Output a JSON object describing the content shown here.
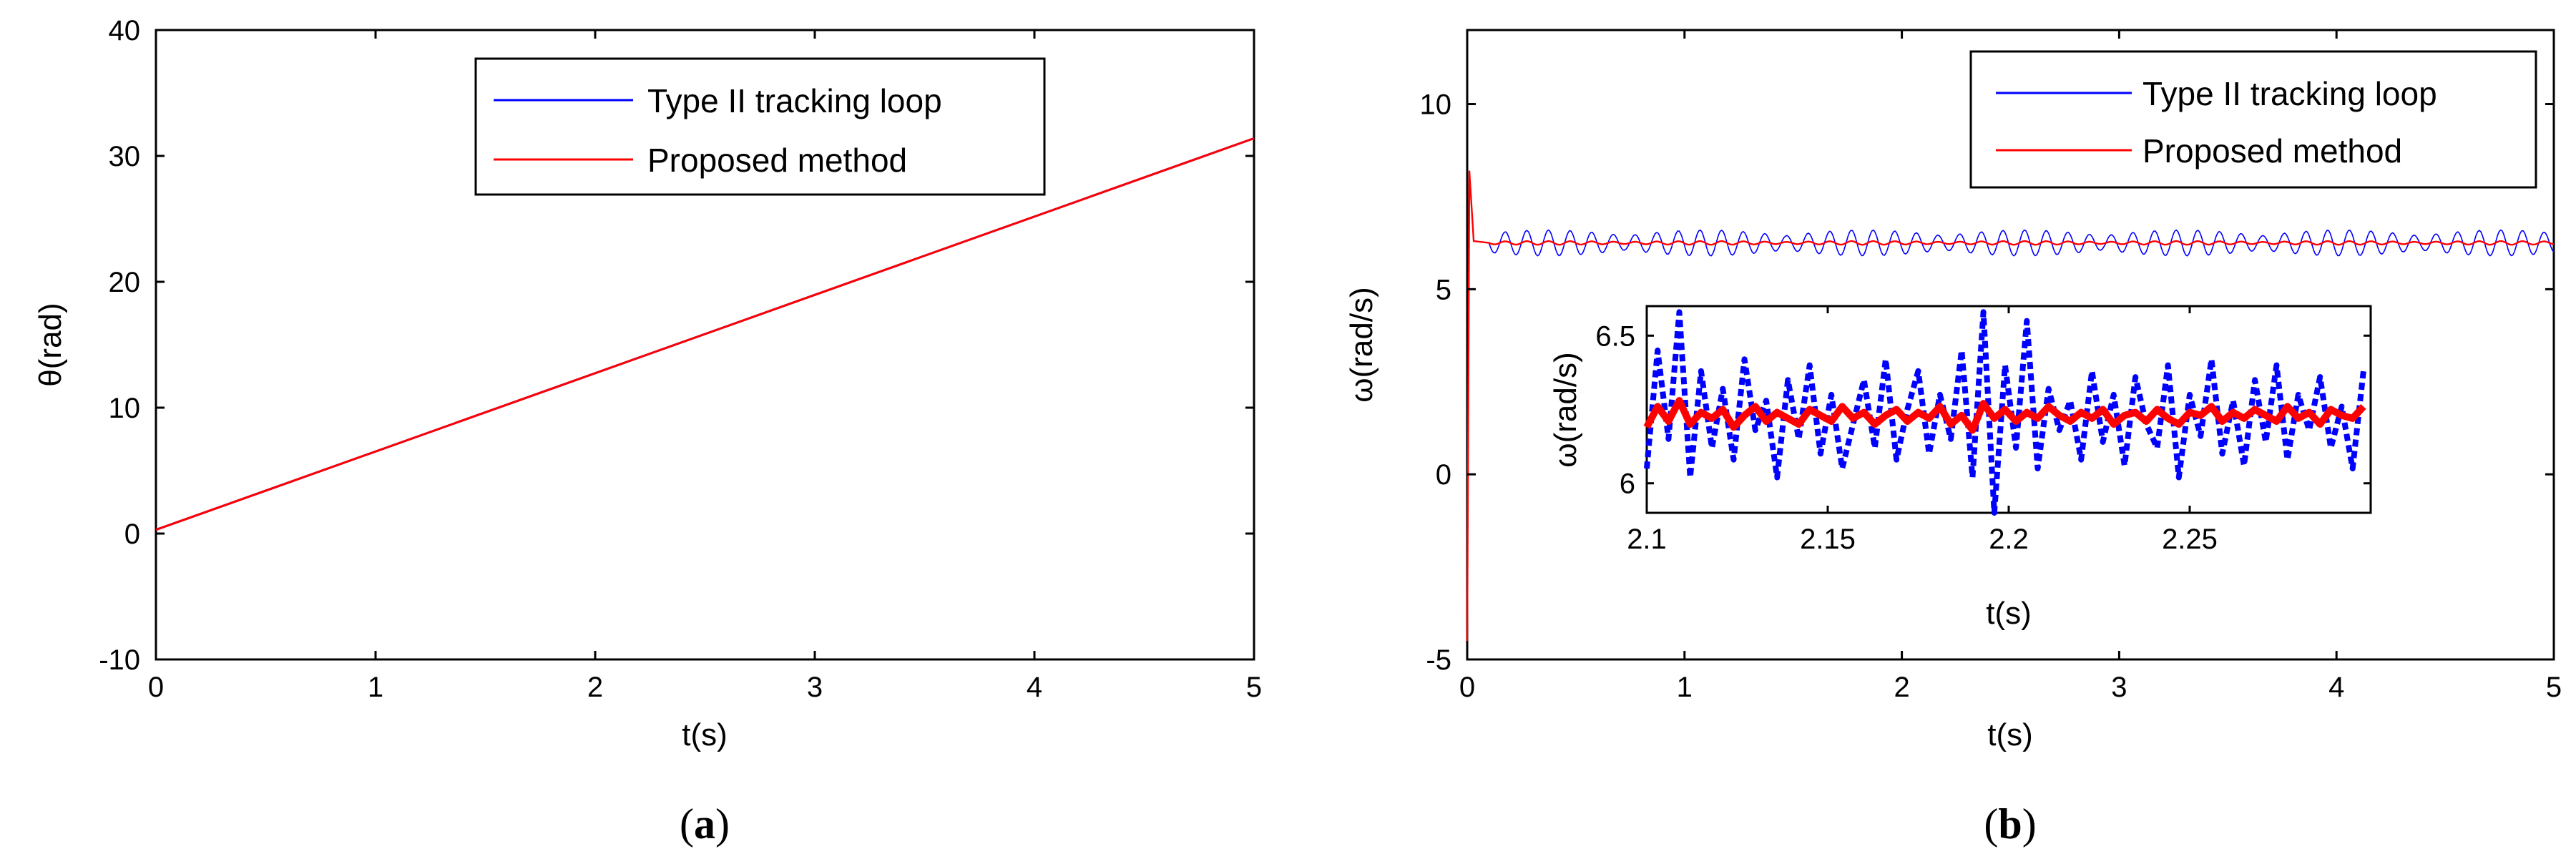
{
  "colors": {
    "type2": "#0000ff",
    "proposed": "#ff0000"
  },
  "chart_data": [
    {
      "id": "a",
      "type": "line",
      "caption": "a",
      "xlabel": "t(s)",
      "ylabel": "θ(rad)",
      "xlim": [
        0,
        5
      ],
      "ylim": [
        -10,
        40
      ],
      "xticks": [
        0,
        1,
        2,
        3,
        4,
        5
      ],
      "yticks": [
        -10,
        0,
        10,
        20,
        30,
        40
      ],
      "legend": "top-right",
      "grid": false,
      "series": [
        {
          "name": "Type II tracking loop",
          "color": "#0000ff",
          "x": [
            0,
            5
          ],
          "y": [
            0.3,
            31.4
          ]
        },
        {
          "name": "Proposed method",
          "color": "#ff0000",
          "x": [
            0,
            5
          ],
          "y": [
            0.3,
            31.4
          ]
        }
      ]
    },
    {
      "id": "b",
      "type": "line",
      "caption": "b",
      "xlabel": "t(s)",
      "ylabel": "ω(rad/s)",
      "xlim": [
        0,
        5
      ],
      "ylim": [
        -5,
        12
      ],
      "xticks": [
        0,
        1,
        2,
        3,
        4,
        5
      ],
      "yticks": [
        -5,
        0,
        5,
        10
      ],
      "legend": "top-right",
      "grid": false,
      "series": [
        {
          "name": "Type II tracking loop",
          "color": "#0000ff",
          "x": [
            0,
            0.01,
            0.03,
            0.1,
            5
          ],
          "y": [
            -4.5,
            8.2,
            6.3,
            6.25,
            6.25
          ],
          "noise_amplitude": 0.35
        },
        {
          "name": "Proposed method",
          "color": "#ff0000",
          "x": [
            0,
            0.01,
            0.03,
            0.1,
            5
          ],
          "y": [
            -4.5,
            8.2,
            6.3,
            6.25,
            6.25
          ],
          "noise_amplitude": 0.05
        }
      ],
      "inset": {
        "xlabel": "t(s)",
        "ylabel": "ω(rad/s)",
        "xlim": [
          2.1,
          2.3
        ],
        "ylim": [
          5.9,
          6.6
        ],
        "xticks": [
          2.1,
          2.15,
          2.2,
          2.25
        ],
        "yticks": [
          6,
          6.5
        ],
        "series": [
          {
            "name": "Type II tracking loop",
            "color": "#0000ff",
            "style": "dotted",
            "x": [
              2.1,
              2.103,
              2.106,
              2.109,
              2.112,
              2.115,
              2.118,
              2.121,
              2.124,
              2.127,
              2.13,
              2.133,
              2.136,
              2.139,
              2.142,
              2.145,
              2.148,
              2.151,
              2.154,
              2.157,
              2.16,
              2.163,
              2.166,
              2.169,
              2.172,
              2.175,
              2.178,
              2.181,
              2.184,
              2.187,
              2.19,
              2.193,
              2.196,
              2.199,
              2.202,
              2.205,
              2.208,
              2.211,
              2.214,
              2.217,
              2.22,
              2.223,
              2.226,
              2.229,
              2.232,
              2.235,
              2.238,
              2.241,
              2.244,
              2.247,
              2.25,
              2.253,
              2.256,
              2.259,
              2.262,
              2.265,
              2.268,
              2.271,
              2.274,
              2.277,
              2.28,
              2.283,
              2.286,
              2.289,
              2.292,
              2.295,
              2.298
            ],
            "y": [
              6.05,
              6.45,
              6.15,
              6.58,
              6.02,
              6.38,
              6.12,
              6.32,
              6.08,
              6.42,
              6.18,
              6.28,
              6.02,
              6.35,
              6.15,
              6.4,
              6.1,
              6.3,
              6.05,
              6.2,
              6.35,
              6.12,
              6.42,
              6.08,
              6.25,
              6.38,
              6.1,
              6.3,
              6.15,
              6.45,
              6.02,
              6.58,
              5.9,
              6.4,
              6.12,
              6.55,
              6.05,
              6.32,
              6.18,
              6.28,
              6.08,
              6.38,
              6.14,
              6.3,
              6.06,
              6.36,
              6.2,
              6.12,
              6.4,
              6.02,
              6.3,
              6.16,
              6.42,
              6.1,
              6.28,
              6.06,
              6.35,
              6.14,
              6.4,
              6.08,
              6.3,
              6.18,
              6.36,
              6.12,
              6.26,
              6.05,
              6.38
            ]
          },
          {
            "name": "Proposed method",
            "color": "#ff0000",
            "style": "solid",
            "x": [
              2.1,
              2.103,
              2.106,
              2.109,
              2.112,
              2.115,
              2.118,
              2.121,
              2.124,
              2.127,
              2.13,
              2.133,
              2.136,
              2.139,
              2.142,
              2.145,
              2.148,
              2.151,
              2.154,
              2.157,
              2.16,
              2.163,
              2.166,
              2.169,
              2.172,
              2.175,
              2.178,
              2.181,
              2.184,
              2.187,
              2.19,
              2.193,
              2.196,
              2.199,
              2.202,
              2.205,
              2.208,
              2.211,
              2.214,
              2.217,
              2.22,
              2.223,
              2.226,
              2.229,
              2.232,
              2.235,
              2.238,
              2.241,
              2.244,
              2.247,
              2.25,
              2.253,
              2.256,
              2.259,
              2.262,
              2.265,
              2.268,
              2.271,
              2.274,
              2.277,
              2.28,
              2.283,
              2.286,
              2.289,
              2.292,
              2.295,
              2.298
            ],
            "y": [
              6.19,
              6.26,
              6.21,
              6.28,
              6.2,
              6.24,
              6.22,
              6.25,
              6.19,
              6.23,
              6.26,
              6.21,
              6.24,
              6.22,
              6.2,
              6.25,
              6.23,
              6.21,
              6.26,
              6.22,
              6.24,
              6.2,
              6.23,
              6.25,
              6.21,
              6.24,
              6.22,
              6.26,
              6.2,
              6.23,
              6.18,
              6.27,
              6.22,
              6.25,
              6.21,
              6.24,
              6.22,
              6.26,
              6.23,
              6.21,
              6.24,
              6.22,
              6.25,
              6.2,
              6.23,
              6.24,
              6.21,
              6.25,
              6.22,
              6.2,
              6.24,
              6.23,
              6.26,
              6.21,
              6.24,
              6.22,
              6.25,
              6.23,
              6.21,
              6.26,
              6.22,
              6.24,
              6.2,
              6.25,
              6.23,
              6.22,
              6.26
            ]
          }
        ]
      }
    }
  ]
}
